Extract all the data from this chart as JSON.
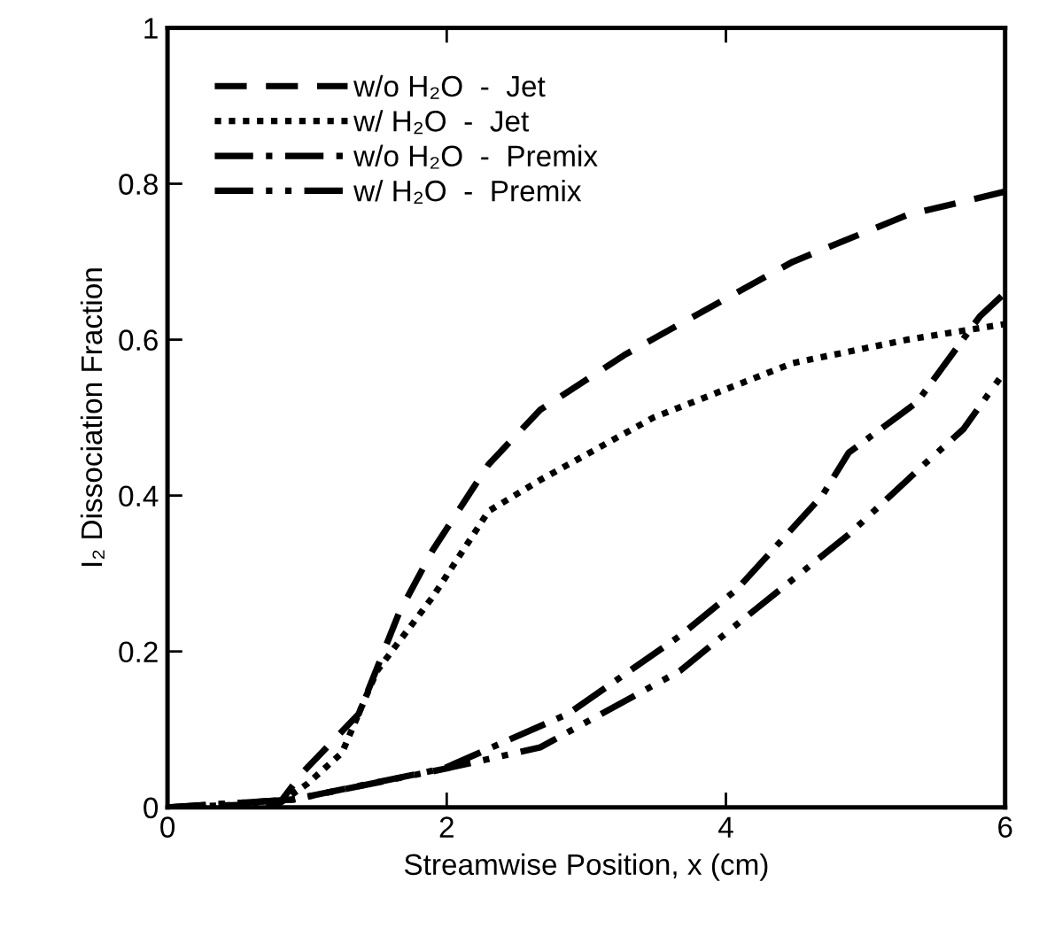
{
  "chart_data": {
    "type": "line",
    "xlabel": "Streamwise Position, x (cm)",
    "ylabel": "I₂ Dissociation Fraction",
    "xlim": [
      0,
      6
    ],
    "ylim": [
      0,
      1
    ],
    "xticks": [
      0,
      2,
      4,
      6
    ],
    "yticks": [
      0,
      0.2,
      0.4,
      0.6,
      0.8,
      1
    ],
    "grid": false,
    "legend": "top left",
    "marker": "none",
    "series": [
      {
        "name": "w/o H₂O  -  Jet",
        "color": "#000000",
        "line_style": "dashed",
        "x": [
          0,
          0.8,
          0.97,
          1.37,
          1.66,
          1.9,
          2.3,
          2.67,
          3.27,
          3.67,
          4.48,
          5.3,
          6.0
        ],
        "values": [
          0,
          0.005,
          0.045,
          0.12,
          0.25,
          0.33,
          0.44,
          0.51,
          0.58,
          0.62,
          0.7,
          0.76,
          0.79
        ]
      },
      {
        "name": "w/ H₂O  -  Jet",
        "color": "#000000",
        "line_style": "dotted",
        "x": [
          0,
          0.8,
          1.0,
          1.25,
          1.5,
          1.9,
          2.3,
          2.67,
          3.48,
          4.48,
          5.3,
          6.0
        ],
        "values": [
          0,
          0.005,
          0.03,
          0.07,
          0.175,
          0.27,
          0.38,
          0.42,
          0.5,
          0.57,
          0.6,
          0.62
        ]
      },
      {
        "name": "w/o H₂O  -  Premix",
        "color": "#000000",
        "line_style": "dashdot",
        "x": [
          0,
          0.9,
          1.98,
          2.87,
          3.67,
          4.08,
          4.69,
          4.88,
          5.37,
          5.82,
          6.0
        ],
        "values": [
          0,
          0.01,
          0.05,
          0.12,
          0.22,
          0.28,
          0.4,
          0.455,
          0.52,
          0.63,
          0.66
        ]
      },
      {
        "name": "w/ H₂O  -  Premix",
        "color": "#000000",
        "line_style": "dashdotdot",
        "x": [
          0,
          0.9,
          2.0,
          2.67,
          3.67,
          4.08,
          4.88,
          5.42,
          5.7,
          6.0
        ],
        "values": [
          0,
          0.01,
          0.05,
          0.077,
          0.175,
          0.235,
          0.35,
          0.44,
          0.485,
          0.56
        ]
      }
    ]
  }
}
